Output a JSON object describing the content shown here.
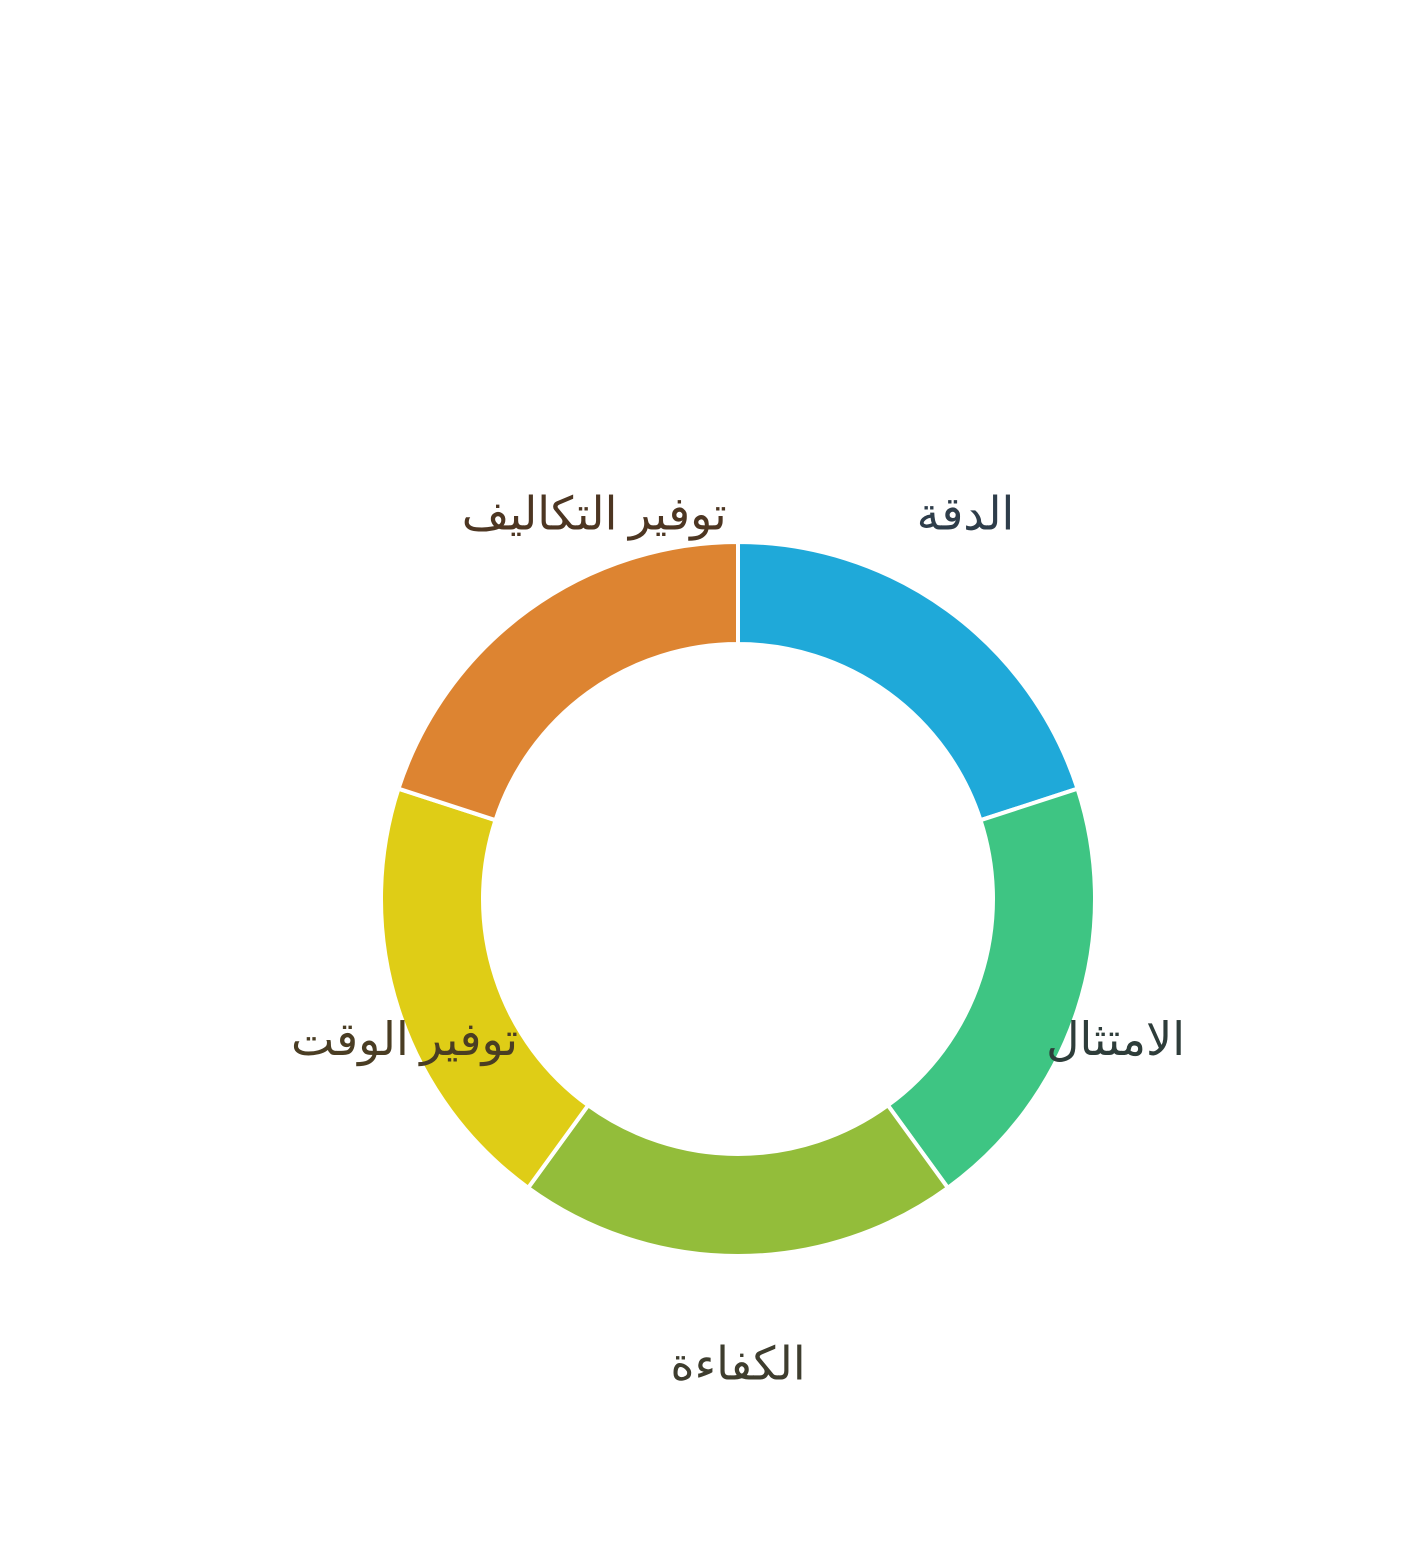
{
  "chart_data": {
    "type": "pie",
    "variant": "donut",
    "title": "",
    "categories": [
      "الدقة",
      "الامتثال",
      "الكفاءة",
      "توفير الوقت",
      "توفير التكاليف"
    ],
    "values": [
      20,
      20,
      20,
      20,
      20
    ],
    "colors": [
      "#1fa9d9",
      "#3ec583",
      "#93bd3a",
      "#dfcd16",
      "#dd8431"
    ],
    "label_colors": [
      "#2e3d4a",
      "#2e3d3a",
      "#3e3d2e",
      "#4a3d23",
      "#4d3622"
    ],
    "start_angle_deg": 0,
    "direction": "clockwise",
    "legend": "none"
  }
}
